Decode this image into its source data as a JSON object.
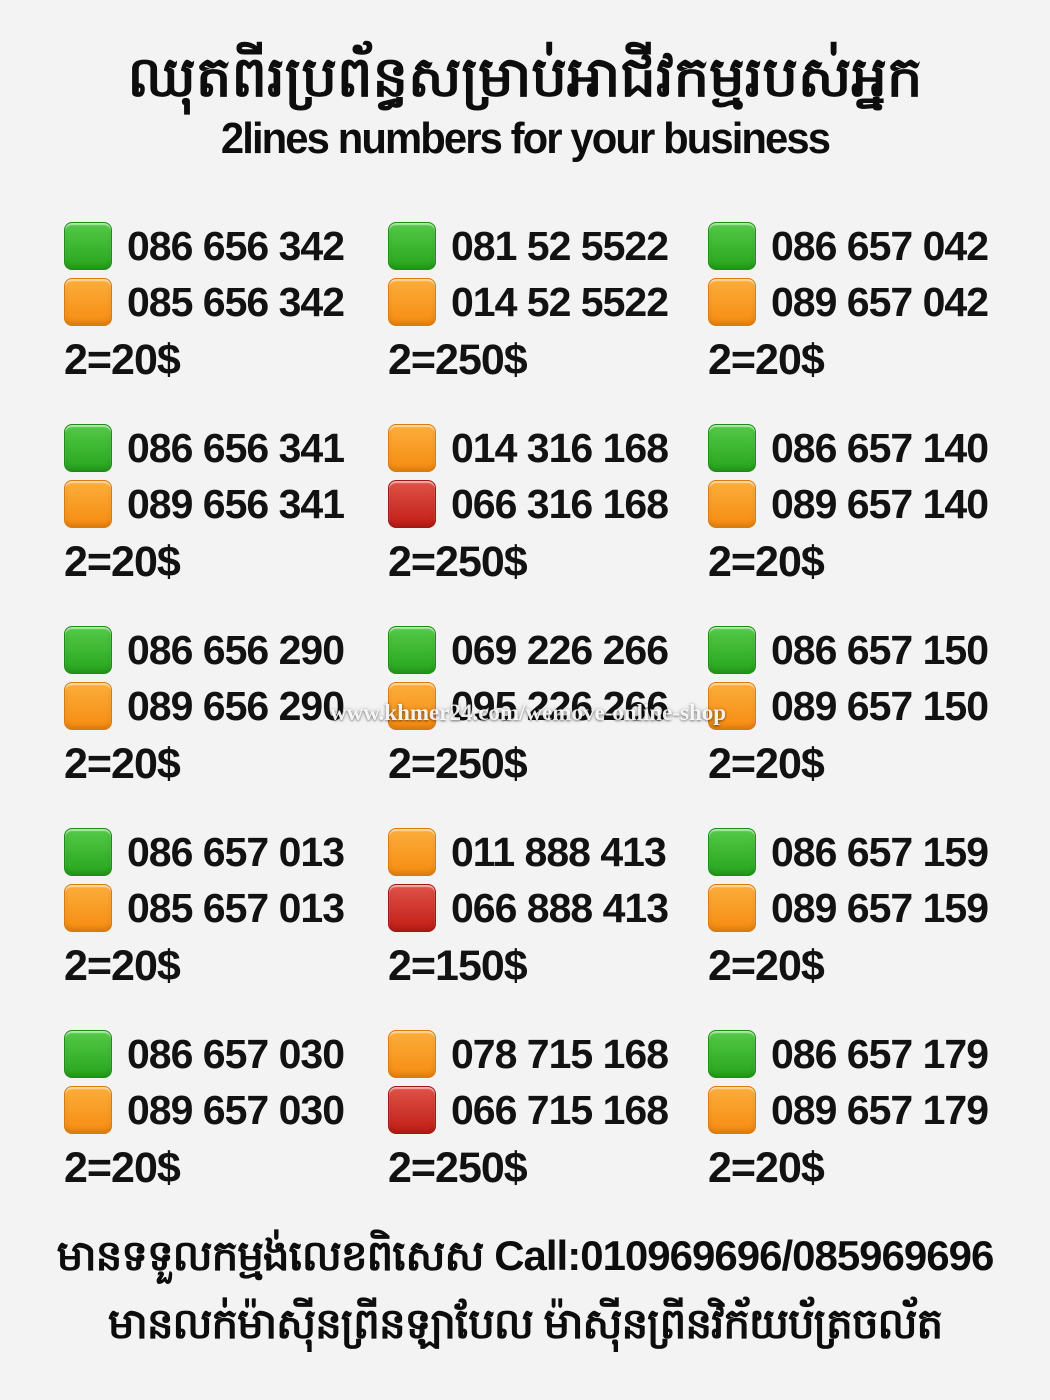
{
  "header": {
    "title_khmer": "ឈុតពីរប្រព័ន្ធសម្រាប់អាជីវកម្មរបស់អ្នក",
    "subtitle": "2lines numbers for your business"
  },
  "watermark": "www.khmer24.com/wemove-online-shop",
  "colors": {
    "green": "#27a41d",
    "orange": "#f68b11",
    "red": "#c01d16",
    "background": "#f3f3f3",
    "text": "#121212"
  },
  "cells": [
    {
      "lines": [
        {
          "color": "green",
          "number": "086 656 342"
        },
        {
          "color": "orange",
          "number": "085 656 342"
        }
      ],
      "price": "2=20$"
    },
    {
      "lines": [
        {
          "color": "green",
          "number": "081 52 5522"
        },
        {
          "color": "orange",
          "number": "014 52 5522"
        }
      ],
      "price": "2=250$"
    },
    {
      "lines": [
        {
          "color": "green",
          "number": "086 657 042"
        },
        {
          "color": "orange",
          "number": "089 657 042"
        }
      ],
      "price": "2=20$"
    },
    {
      "lines": [
        {
          "color": "green",
          "number": "086 656 341"
        },
        {
          "color": "orange",
          "number": "089 656 341"
        }
      ],
      "price": "2=20$"
    },
    {
      "lines": [
        {
          "color": "orange",
          "number": "014 316 168"
        },
        {
          "color": "red",
          "number": "066 316 168"
        }
      ],
      "price": "2=250$"
    },
    {
      "lines": [
        {
          "color": "green",
          "number": "086 657 140"
        },
        {
          "color": "orange",
          "number": "089 657 140"
        }
      ],
      "price": "2=20$"
    },
    {
      "lines": [
        {
          "color": "green",
          "number": "086 656 290"
        },
        {
          "color": "orange",
          "number": "089 656 290"
        }
      ],
      "price": "2=20$"
    },
    {
      "lines": [
        {
          "color": "green",
          "number": "069 226 266"
        },
        {
          "color": "orange",
          "number": "095 226 266"
        }
      ],
      "price": "2=250$"
    },
    {
      "lines": [
        {
          "color": "green",
          "number": "086 657 150"
        },
        {
          "color": "orange",
          "number": "089 657 150"
        }
      ],
      "price": "2=20$"
    },
    {
      "lines": [
        {
          "color": "green",
          "number": "086 657 013"
        },
        {
          "color": "orange",
          "number": "085 657 013"
        }
      ],
      "price": "2=20$"
    },
    {
      "lines": [
        {
          "color": "orange",
          "number": "011 888 413"
        },
        {
          "color": "red",
          "number": "066 888 413"
        }
      ],
      "price": "2=150$"
    },
    {
      "lines": [
        {
          "color": "green",
          "number": "086 657 159"
        },
        {
          "color": "orange",
          "number": "089 657 159"
        }
      ],
      "price": "2=20$"
    },
    {
      "lines": [
        {
          "color": "green",
          "number": "086 657 030"
        },
        {
          "color": "orange",
          "number": "089 657 030"
        }
      ],
      "price": "2=20$"
    },
    {
      "lines": [
        {
          "color": "orange",
          "number": "078 715 168"
        },
        {
          "color": "red",
          "number": "066 715 168"
        }
      ],
      "price": "2=250$"
    },
    {
      "lines": [
        {
          "color": "green",
          "number": "086 657 179"
        },
        {
          "color": "orange",
          "number": "089 657 179"
        }
      ],
      "price": "2=20$"
    }
  ],
  "footer": {
    "line1": "មានទទួលកម្មង់លេខពិសេស Call:010969696/085969696",
    "line2": "មានលក់ម៉ាស៊ីនព្រីនឡាបែល ម៉ាស៊ីនព្រីនវិក័យប័ត្រចល័ត"
  }
}
